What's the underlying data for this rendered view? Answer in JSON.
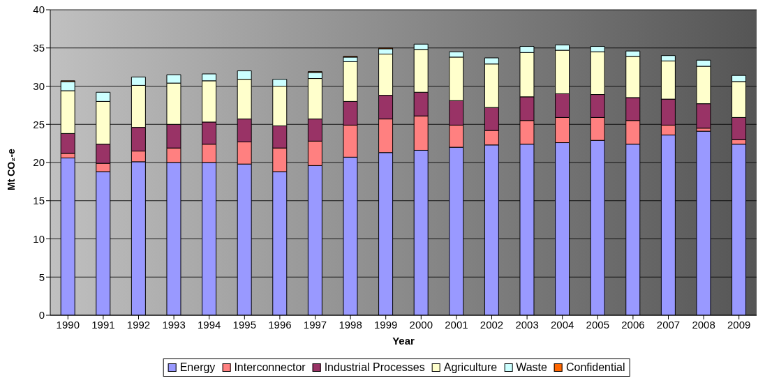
{
  "chart_data": {
    "type": "bar",
    "stacked": true,
    "xlabel": "Year",
    "ylabel": "Mt CO₂-e",
    "categories": [
      "1990",
      "1991",
      "1992",
      "1993",
      "1994",
      "1995",
      "1996",
      "1997",
      "1998",
      "1999",
      "2000",
      "2001",
      "2002",
      "2003",
      "2004",
      "2005",
      "2006",
      "2007",
      "2008",
      "2009"
    ],
    "series": [
      {
        "name": "Energy",
        "color": "#9999ff",
        "values": [
          20.6,
          18.8,
          20.1,
          20.0,
          20.0,
          19.8,
          18.8,
          19.6,
          20.7,
          21.3,
          21.6,
          22.0,
          22.3,
          22.4,
          22.6,
          22.9,
          22.4,
          23.6,
          24.1,
          22.4
        ]
      },
      {
        "name": "Interconnector",
        "color": "#ff8080",
        "values": [
          0.6,
          1.1,
          1.4,
          1.9,
          2.4,
          2.9,
          3.1,
          3.2,
          4.2,
          4.4,
          4.5,
          2.9,
          1.9,
          3.1,
          3.3,
          3.0,
          3.1,
          1.3,
          0.4,
          0.6
        ]
      },
      {
        "name": "Industrial Processes",
        "color": "#993366",
        "values": [
          2.6,
          2.5,
          3.1,
          3.1,
          2.9,
          3.0,
          2.9,
          2.9,
          3.1,
          3.1,
          3.1,
          3.2,
          3.0,
          3.1,
          3.1,
          3.0,
          3.0,
          3.4,
          3.2,
          2.9
        ]
      },
      {
        "name": "Agriculture",
        "color": "#ffffcc",
        "values": [
          5.6,
          5.6,
          5.5,
          5.4,
          5.4,
          5.2,
          5.2,
          5.3,
          5.2,
          5.4,
          5.6,
          5.7,
          5.7,
          5.8,
          5.7,
          5.6,
          5.4,
          5.0,
          4.9,
          4.7
        ]
      },
      {
        "name": "Waste",
        "color": "#ccffff",
        "values": [
          1.2,
          1.2,
          1.1,
          1.1,
          0.9,
          1.1,
          0.9,
          0.8,
          0.6,
          0.7,
          0.7,
          0.7,
          0.8,
          0.8,
          0.7,
          0.7,
          0.7,
          0.7,
          0.8,
          0.8
        ]
      },
      {
        "name": "Confidential",
        "color": "#ff6600",
        "values": [
          0.1,
          null,
          null,
          null,
          null,
          null,
          null,
          0.1,
          0.1,
          0.1,
          null,
          null,
          null,
          null,
          null,
          null,
          null,
          null,
          null,
          null
        ]
      }
    ],
    "ylim": [
      0,
      40
    ],
    "yticks": [
      0,
      5,
      10,
      15,
      20,
      25,
      30,
      35,
      40
    ],
    "grid": "y",
    "legend": "bottom"
  }
}
